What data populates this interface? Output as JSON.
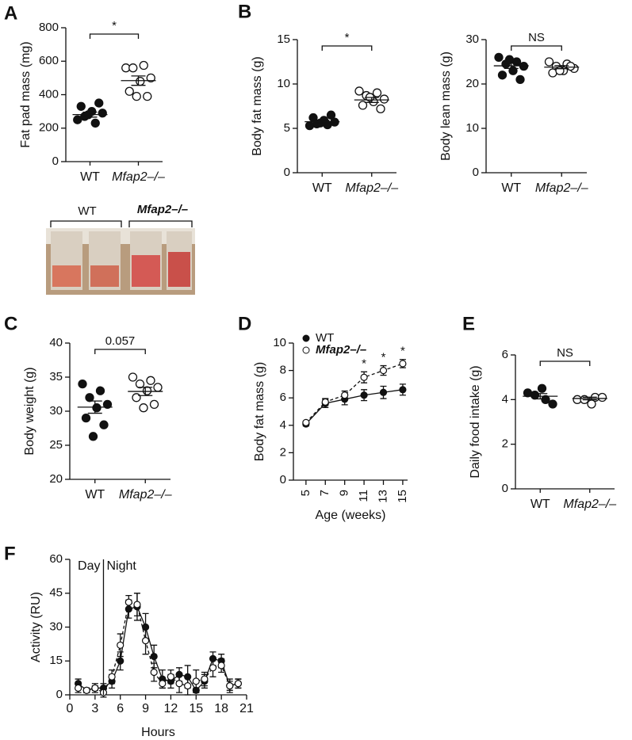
{
  "photo": {
    "labels": [
      "WT",
      "Mfap2–/–"
    ]
  },
  "chart_data": [
    {
      "panel": "A",
      "type": "dot",
      "ylabel": "Fat pad mass (mg)",
      "ylim": [
        0,
        800
      ],
      "yticks": [
        0,
        200,
        400,
        600,
        800
      ],
      "significance": "*",
      "groups": [
        {
          "label": "WT",
          "filled": true,
          "values": [
            250,
            230,
            270,
            290,
            300,
            330,
            350,
            280
          ],
          "mean": 281,
          "sem": 15
        },
        {
          "label": "Mfap2–/–",
          "filled": false,
          "values": [
            560,
            575,
            560,
            500,
            480,
            420,
            390,
            390
          ],
          "mean": 484,
          "sem": 28
        }
      ]
    },
    {
      "panel": "B",
      "type": "dot",
      "ylabel": "Body fat mass (g)",
      "ylim": [
        0,
        15
      ],
      "yticks": [
        0,
        5,
        10,
        15
      ],
      "significance": "*",
      "groups": [
        {
          "label": "WT",
          "filled": true,
          "values": [
            5.3,
            5.4,
            5.5,
            5.7,
            5.9,
            6.2,
            6.5,
            5.6
          ],
          "mean": 5.75,
          "sem": 0.15
        },
        {
          "label": "Mfap2–/–",
          "filled": false,
          "values": [
            9.2,
            9.0,
            8.7,
            8.3,
            8.0,
            7.6,
            7.2,
            8.5
          ],
          "mean": 8.2,
          "sem": 0.28
        }
      ]
    },
    {
      "type": "dot",
      "ylabel": "Body lean mass (g)",
      "ylim": [
        0,
        30
      ],
      "yticks": [
        0,
        10,
        20,
        30
      ],
      "significance": "NS",
      "groups": [
        {
          "label": "WT",
          "filled": true,
          "values": [
            26,
            25,
            24.5,
            24,
            23,
            22,
            21,
            25.5
          ],
          "mean": 24.1,
          "sem": 0.6
        },
        {
          "label": "Mfap2–/–",
          "filled": false,
          "values": [
            25,
            24.5,
            24,
            23.5,
            23,
            22.5,
            24,
            23
          ],
          "mean": 23.8,
          "sem": 0.35
        }
      ]
    },
    {
      "panel": "C",
      "type": "dot",
      "ylabel": "Body weight (g)",
      "ylim": [
        20,
        40
      ],
      "yticks": [
        20,
        25,
        30,
        35,
        40
      ],
      "significance": "0.057",
      "groups": [
        {
          "label": "WT",
          "filled": true,
          "values": [
            34,
            33,
            32,
            31,
            30.5,
            29,
            28,
            26.3
          ],
          "mean": 30.6,
          "sem": 0.9
        },
        {
          "label": "Mfap2–/–",
          "filled": false,
          "values": [
            35,
            34.5,
            34,
            33.5,
            33,
            32,
            31,
            30.5
          ],
          "mean": 32.9,
          "sem": 0.6
        }
      ]
    },
    {
      "panel": "D",
      "type": "line",
      "ylabel": "Body fat mass (g)",
      "xlabel": "Age (weeks)",
      "xlim": [
        3.7,
        15.5
      ],
      "xticks": [
        5,
        7,
        9,
        11,
        13,
        15
      ],
      "ylim": [
        0,
        10
      ],
      "yticks": [
        0,
        2,
        4,
        6,
        8,
        10
      ],
      "series": [
        {
          "name": "WT",
          "filled": true,
          "dashed": false,
          "x": [
            5,
            7,
            9,
            11,
            13,
            15
          ],
          "values": [
            4.1,
            5.6,
            5.9,
            6.2,
            6.4,
            6.6
          ],
          "errors": [
            0.15,
            0.3,
            0.4,
            0.4,
            0.45,
            0.4
          ]
        },
        {
          "name": "Mfap2–/–",
          "filled": false,
          "dashed": true,
          "x": [
            5,
            7,
            9,
            11,
            13,
            15
          ],
          "values": [
            4.2,
            5.7,
            6.2,
            7.5,
            8.0,
            8.5
          ],
          "errors": [
            0.1,
            0.25,
            0.3,
            0.4,
            0.35,
            0.3
          ]
        }
      ],
      "annotations": [
        {
          "x": 11,
          "text": "*"
        },
        {
          "x": 13,
          "text": "*"
        },
        {
          "x": 15,
          "text": "*"
        }
      ]
    },
    {
      "panel": "E",
      "type": "dot",
      "ylabel": "Daily food intake (g)",
      "ylim": [
        0,
        6
      ],
      "yticks": [
        0,
        2,
        4,
        6
      ],
      "significance": "NS",
      "groups": [
        {
          "label": "WT",
          "filled": true,
          "values": [
            4.3,
            4.0,
            4.2,
            3.8,
            4.5
          ],
          "mean": 4.15,
          "sem": 0.12
        },
        {
          "label": "Mfap2–/–",
          "filled": false,
          "values": [
            4.0,
            4.1,
            4.0,
            4.1,
            3.8
          ],
          "mean": 4.05,
          "sem": 0.06
        }
      ]
    },
    {
      "panel": "F",
      "type": "line",
      "ylabel": "Activity (RU)",
      "xlabel": "Hours",
      "xlim": [
        0,
        21
      ],
      "xticks": [
        0,
        3,
        6,
        9,
        12,
        15,
        18,
        21
      ],
      "ylim": [
        0,
        60
      ],
      "yticks": [
        0,
        15,
        30,
        45,
        60
      ],
      "divider": {
        "x": 4,
        "left": "Day",
        "right": "Night"
      },
      "series": [
        {
          "filled": true,
          "dashed": false,
          "x": [
            1,
            2,
            3,
            4,
            5,
            6,
            7,
            8,
            9,
            10,
            11,
            12,
            13,
            14,
            15,
            16,
            17,
            18,
            19,
            20
          ],
          "values": [
            5,
            2,
            3,
            3,
            6,
            15,
            38,
            39,
            30,
            17,
            7,
            6,
            9,
            8,
            2,
            6,
            16,
            15,
            4,
            5
          ],
          "errors": [
            2,
            1,
            2,
            2,
            3,
            4,
            4,
            6,
            6,
            5,
            4,
            3,
            3,
            5,
            1,
            3,
            3,
            3,
            3,
            2
          ]
        },
        {
          "filled": false,
          "dashed": true,
          "x": [
            1,
            2,
            3,
            4,
            5,
            6,
            7,
            8,
            9,
            10,
            11,
            12,
            13,
            14,
            15,
            16,
            17,
            18,
            19,
            20
          ],
          "values": [
            3,
            2,
            3,
            1,
            8,
            22,
            41,
            40,
            24,
            10,
            5,
            8,
            5,
            4,
            6,
            7,
            12,
            13,
            4,
            5
          ],
          "errors": [
            2,
            1,
            1,
            2,
            3,
            5,
            3,
            5,
            6,
            4,
            2,
            3,
            4,
            4,
            5,
            3,
            4,
            3,
            2,
            2
          ]
        }
      ]
    }
  ]
}
